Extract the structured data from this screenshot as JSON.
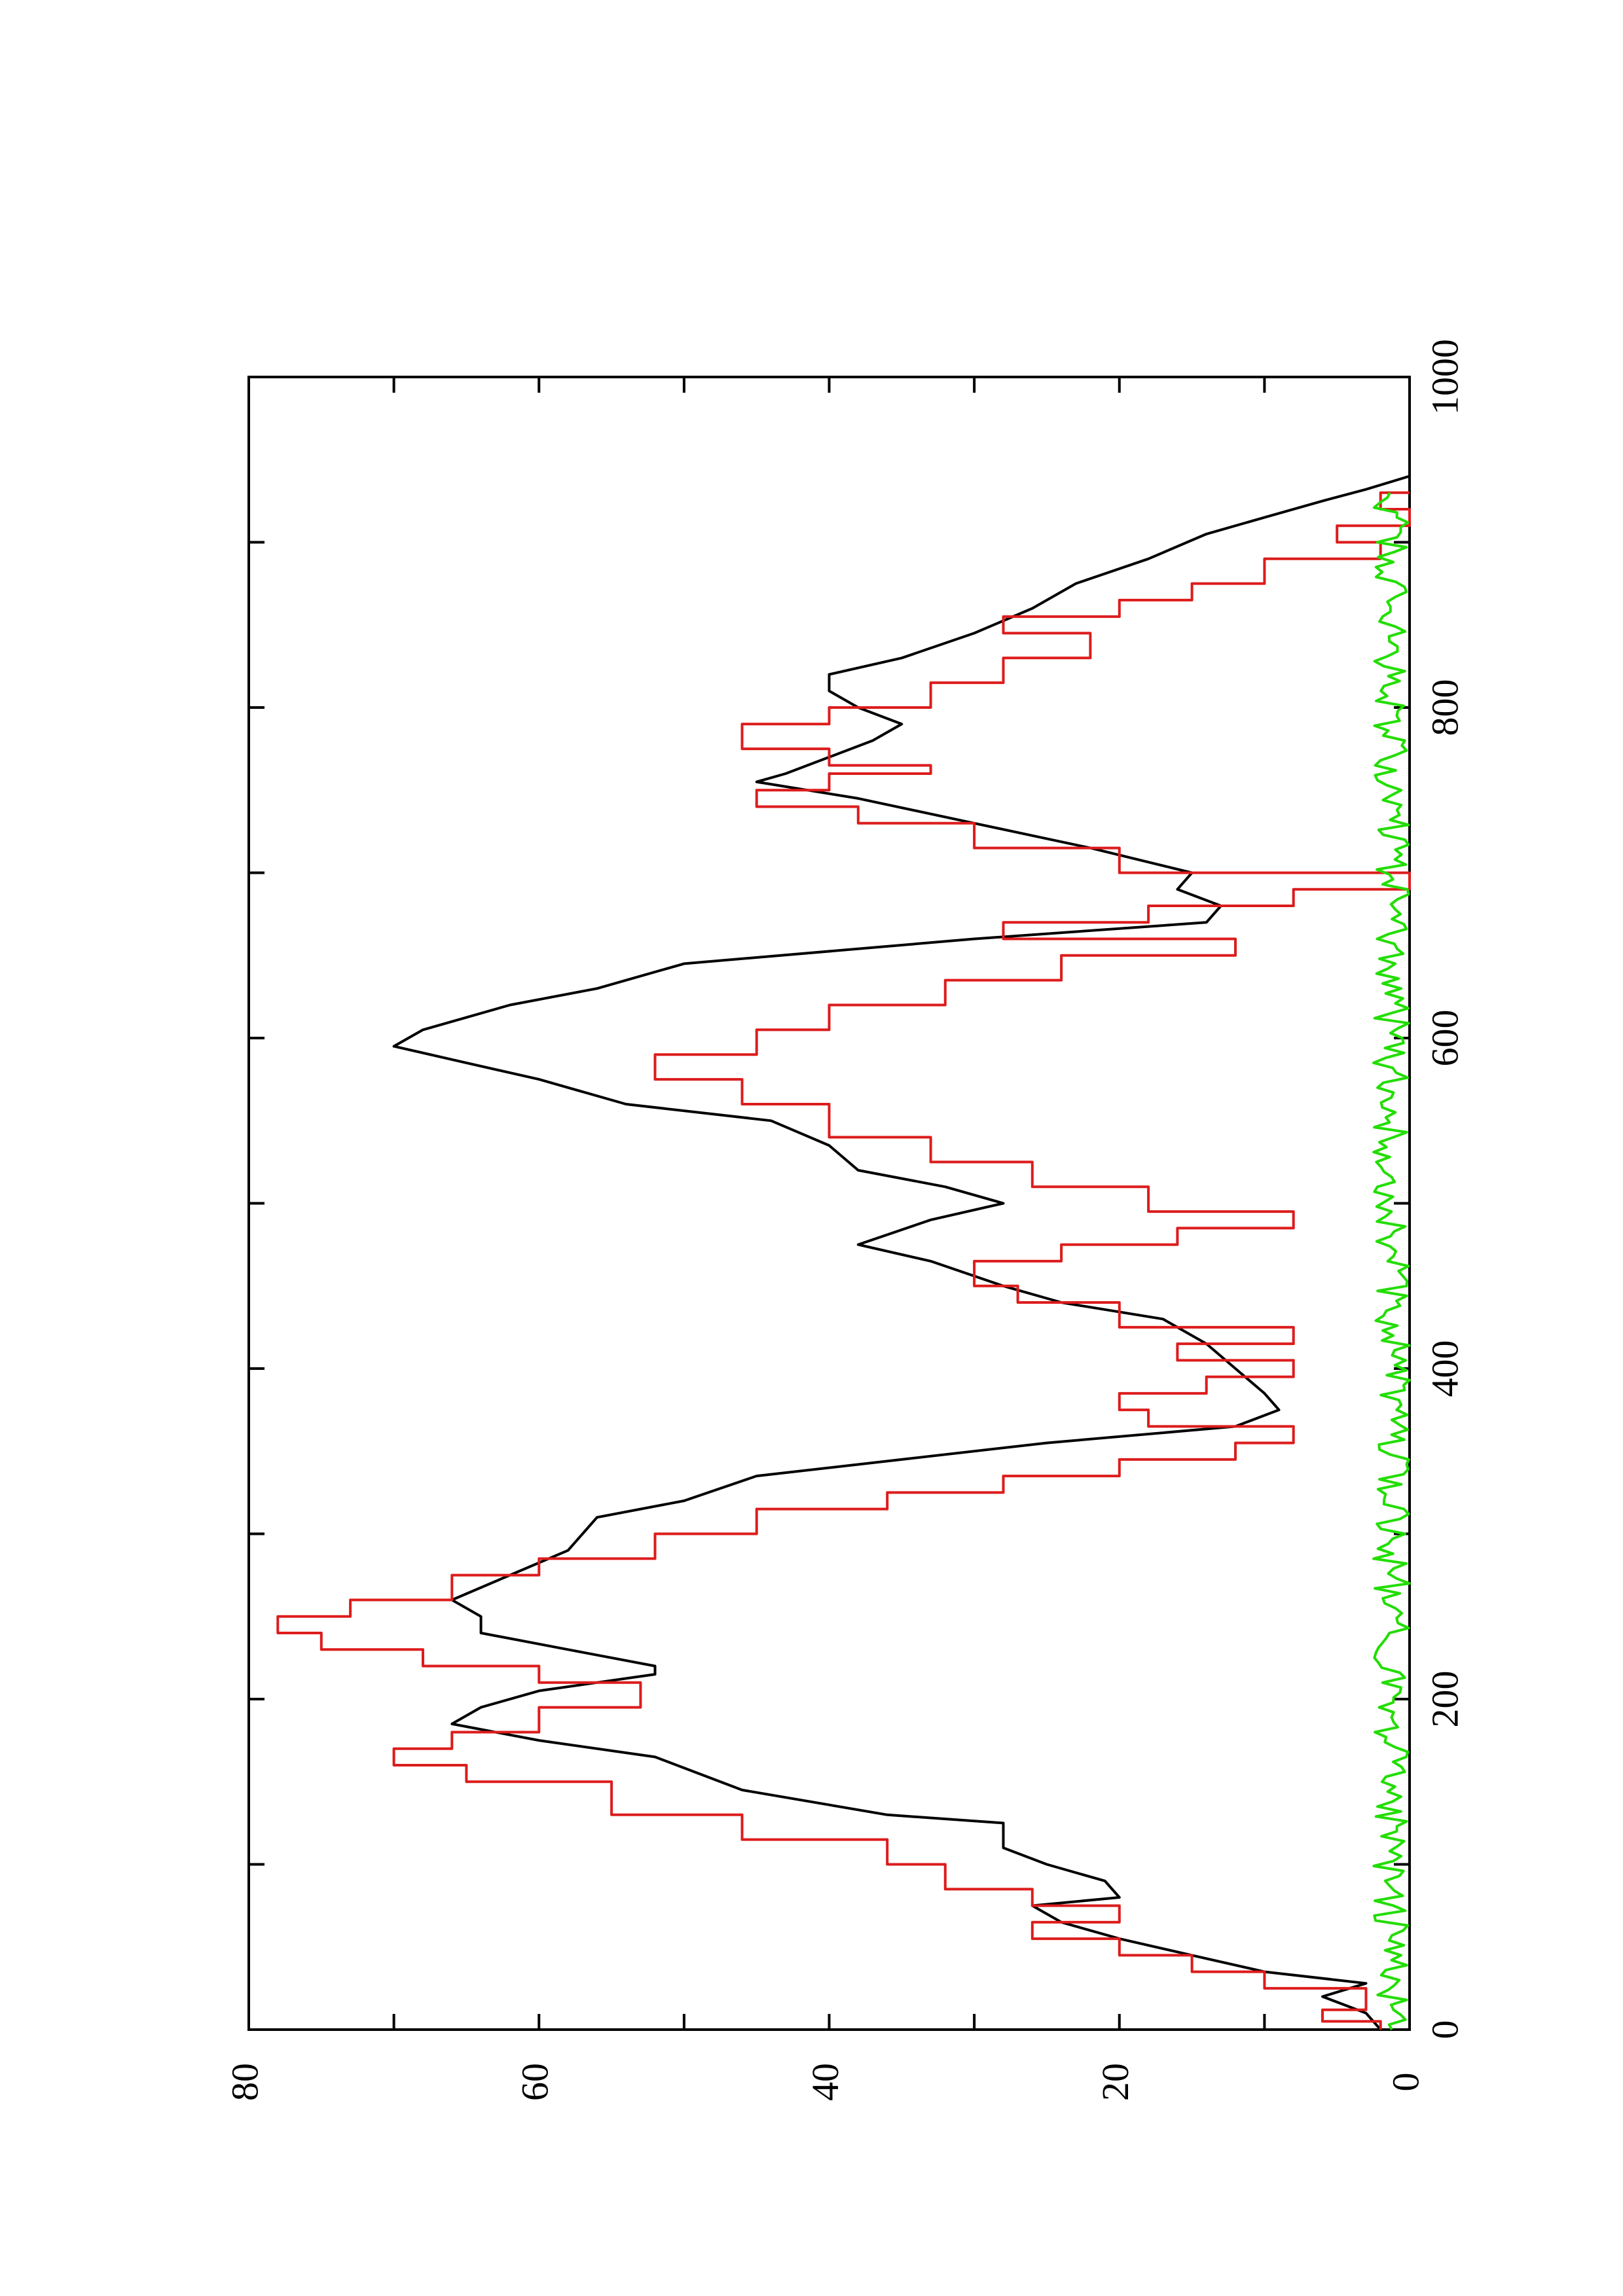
{
  "chart_data": {
    "type": "line",
    "orientation": "rotated-90-counterclockwise",
    "title": "",
    "xlabel": "",
    "ylabel": "",
    "xlim": [
      0,
      1000
    ],
    "ylim": [
      0,
      80
    ],
    "x_ticks": [
      "0",
      "200",
      "400",
      "600",
      "800",
      "1000"
    ],
    "x_minor_ticks": [
      100,
      300,
      500,
      700,
      900
    ],
    "y_ticks": [
      "0",
      "20",
      "40",
      "60",
      "80"
    ],
    "y_minor_ticks": [
      10,
      30,
      50,
      70
    ],
    "grid": false,
    "legend": "none",
    "series": [
      {
        "color": "#000000",
        "style": "smooth",
        "points": [
          [
            0,
            2
          ],
          [
            10,
            3
          ],
          [
            20,
            6
          ],
          [
            28,
            3
          ],
          [
            35,
            10
          ],
          [
            45,
            15
          ],
          [
            55,
            20
          ],
          [
            65,
            24
          ],
          [
            75,
            26
          ],
          [
            80,
            20
          ],
          [
            90,
            21
          ],
          [
            100,
            25
          ],
          [
            110,
            28
          ],
          [
            125,
            28
          ],
          [
            130,
            36
          ],
          [
            145,
            46
          ],
          [
            155,
            49
          ],
          [
            165,
            52
          ],
          [
            175,
            60
          ],
          [
            185,
            66
          ],
          [
            195,
            64
          ],
          [
            205,
            60
          ],
          [
            215,
            52
          ],
          [
            220,
            52
          ],
          [
            230,
            58
          ],
          [
            240,
            64
          ],
          [
            250,
            64
          ],
          [
            260,
            66
          ],
          [
            275,
            62
          ],
          [
            290,
            58
          ],
          [
            310,
            56
          ],
          [
            320,
            50
          ],
          [
            335,
            45
          ],
          [
            345,
            35
          ],
          [
            355,
            25
          ],
          [
            365,
            12
          ],
          [
            375,
            9
          ],
          [
            385,
            10
          ],
          [
            400,
            12
          ],
          [
            415,
            14
          ],
          [
            430,
            17
          ],
          [
            440,
            24
          ],
          [
            450,
            28
          ],
          [
            465,
            33
          ],
          [
            475,
            38
          ],
          [
            490,
            33
          ],
          [
            500,
            28
          ],
          [
            510,
            32
          ],
          [
            520,
            38
          ],
          [
            535,
            40
          ],
          [
            550,
            44
          ],
          [
            560,
            54
          ],
          [
            575,
            60
          ],
          [
            585,
            65
          ],
          [
            595,
            70
          ],
          [
            605,
            68
          ],
          [
            620,
            62
          ],
          [
            630,
            56
          ],
          [
            645,
            50
          ],
          [
            660,
            30
          ],
          [
            670,
            14
          ],
          [
            680,
            13
          ],
          [
            690,
            16
          ],
          [
            700,
            15
          ],
          [
            715,
            22
          ],
          [
            730,
            30
          ],
          [
            745,
            38
          ],
          [
            755,
            45
          ],
          [
            760,
            43
          ],
          [
            770,
            40
          ],
          [
            780,
            37
          ],
          [
            790,
            35
          ],
          [
            800,
            38
          ],
          [
            810,
            40
          ],
          [
            820,
            40
          ],
          [
            830,
            35
          ],
          [
            845,
            30
          ],
          [
            860,
            26
          ],
          [
            875,
            23
          ],
          [
            890,
            18
          ],
          [
            905,
            14
          ],
          [
            915,
            10
          ],
          [
            925,
            6
          ],
          [
            932,
            3
          ],
          [
            940,
            0
          ]
        ]
      },
      {
        "color": "#dd1c1c",
        "style": "step",
        "points": [
          [
            0,
            2
          ],
          [
            5,
            2
          ],
          [
            5,
            6
          ],
          [
            12,
            6
          ],
          [
            12,
            3
          ],
          [
            25,
            3
          ],
          [
            25,
            10
          ],
          [
            35,
            10
          ],
          [
            35,
            15
          ],
          [
            45,
            15
          ],
          [
            45,
            20
          ],
          [
            55,
            20
          ],
          [
            55,
            26
          ],
          [
            65,
            26
          ],
          [
            65,
            20
          ],
          [
            75,
            20
          ],
          [
            75,
            26
          ],
          [
            85,
            26
          ],
          [
            85,
            32
          ],
          [
            100,
            32
          ],
          [
            100,
            36
          ],
          [
            115,
            36
          ],
          [
            115,
            46
          ],
          [
            130,
            46
          ],
          [
            130,
            55
          ],
          [
            150,
            55
          ],
          [
            150,
            65
          ],
          [
            160,
            65
          ],
          [
            160,
            70
          ],
          [
            170,
            70
          ],
          [
            170,
            66
          ],
          [
            180,
            66
          ],
          [
            180,
            60
          ],
          [
            195,
            60
          ],
          [
            195,
            53
          ],
          [
            210,
            53
          ],
          [
            210,
            60
          ],
          [
            220,
            60
          ],
          [
            220,
            68
          ],
          [
            230,
            68
          ],
          [
            230,
            75
          ],
          [
            240,
            75
          ],
          [
            240,
            78
          ],
          [
            250,
            78
          ],
          [
            250,
            73
          ],
          [
            260,
            73
          ],
          [
            260,
            66
          ],
          [
            275,
            66
          ],
          [
            275,
            60
          ],
          [
            285,
            60
          ],
          [
            285,
            52
          ],
          [
            300,
            52
          ],
          [
            300,
            45
          ],
          [
            315,
            45
          ],
          [
            315,
            36
          ],
          [
            325,
            36
          ],
          [
            325,
            28
          ],
          [
            335,
            28
          ],
          [
            335,
            20
          ],
          [
            345,
            20
          ],
          [
            345,
            12
          ],
          [
            355,
            12
          ],
          [
            355,
            8
          ],
          [
            365,
            8
          ],
          [
            365,
            18
          ],
          [
            375,
            18
          ],
          [
            375,
            20
          ],
          [
            385,
            20
          ],
          [
            385,
            14
          ],
          [
            395,
            14
          ],
          [
            395,
            8
          ],
          [
            405,
            8
          ],
          [
            405,
            16
          ],
          [
            415,
            16
          ],
          [
            415,
            8
          ],
          [
            425,
            8
          ],
          [
            425,
            20
          ],
          [
            440,
            20
          ],
          [
            440,
            27
          ],
          [
            450,
            27
          ],
          [
            450,
            30
          ],
          [
            465,
            30
          ],
          [
            465,
            24
          ],
          [
            475,
            24
          ],
          [
            475,
            16
          ],
          [
            485,
            16
          ],
          [
            485,
            8
          ],
          [
            495,
            8
          ],
          [
            495,
            18
          ],
          [
            510,
            18
          ],
          [
            510,
            26
          ],
          [
            525,
            26
          ],
          [
            525,
            33
          ],
          [
            540,
            33
          ],
          [
            540,
            40
          ],
          [
            560,
            40
          ],
          [
            560,
            46
          ],
          [
            575,
            46
          ],
          [
            575,
            52
          ],
          [
            590,
            52
          ],
          [
            590,
            45
          ],
          [
            605,
            45
          ],
          [
            605,
            40
          ],
          [
            620,
            40
          ],
          [
            620,
            32
          ],
          [
            635,
            32
          ],
          [
            635,
            24
          ],
          [
            650,
            24
          ],
          [
            650,
            12
          ],
          [
            660,
            12
          ],
          [
            660,
            28
          ],
          [
            670,
            28
          ],
          [
            670,
            18
          ],
          [
            680,
            18
          ],
          [
            680,
            8
          ],
          [
            690,
            8
          ],
          [
            690,
            0
          ],
          [
            700,
            0
          ],
          [
            700,
            20
          ],
          [
            715,
            20
          ],
          [
            715,
            30
          ],
          [
            730,
            30
          ],
          [
            730,
            38
          ],
          [
            740,
            38
          ],
          [
            740,
            45
          ],
          [
            750,
            45
          ],
          [
            750,
            40
          ],
          [
            760,
            40
          ],
          [
            760,
            33
          ],
          [
            765,
            33
          ],
          [
            765,
            40
          ],
          [
            775,
            40
          ],
          [
            775,
            46
          ],
          [
            790,
            46
          ],
          [
            790,
            40
          ],
          [
            800,
            40
          ],
          [
            800,
            33
          ],
          [
            815,
            33
          ],
          [
            815,
            28
          ],
          [
            830,
            28
          ],
          [
            830,
            22
          ],
          [
            845,
            22
          ],
          [
            845,
            28
          ],
          [
            855,
            28
          ],
          [
            855,
            20
          ],
          [
            865,
            20
          ],
          [
            865,
            15
          ],
          [
            875,
            15
          ],
          [
            875,
            10
          ],
          [
            890,
            10
          ],
          [
            890,
            2
          ],
          [
            900,
            2
          ],
          [
            900,
            5
          ],
          [
            910,
            5
          ],
          [
            910,
            0
          ],
          [
            920,
            0
          ],
          [
            920,
            2
          ],
          [
            930,
            2
          ],
          [
            930,
            0
          ]
        ]
      },
      {
        "color": "#22dd00",
        "style": "noise",
        "amplitude": 2.5,
        "x_range": [
          0,
          930
        ],
        "points": [
          [
            0,
            1
          ],
          [
            20,
            2.5
          ],
          [
            40,
            0.5
          ],
          [
            60,
            1.5
          ],
          [
            80,
            1
          ],
          [
            100,
            2
          ],
          [
            120,
            0.5
          ],
          [
            140,
            1.5
          ],
          [
            160,
            1
          ],
          [
            180,
            2
          ],
          [
            200,
            0.5
          ],
          [
            220,
            1.5
          ],
          [
            240,
            1
          ],
          [
            260,
            2
          ],
          [
            280,
            0.5
          ],
          [
            300,
            1.5
          ],
          [
            320,
            1
          ],
          [
            340,
            1.5
          ],
          [
            360,
            0.5
          ],
          [
            380,
            2.5
          ],
          [
            400,
            1
          ],
          [
            420,
            2
          ],
          [
            440,
            0.5
          ],
          [
            460,
            2
          ],
          [
            480,
            1
          ],
          [
            500,
            1.5
          ],
          [
            520,
            0.5
          ],
          [
            540,
            1.5
          ],
          [
            560,
            1
          ],
          [
            580,
            2
          ],
          [
            600,
            0.5
          ],
          [
            620,
            1.5
          ],
          [
            640,
            1
          ],
          [
            660,
            2
          ],
          [
            680,
            0.5
          ],
          [
            700,
            2
          ],
          [
            720,
            1
          ],
          [
            740,
            1.5
          ],
          [
            760,
            0.5
          ],
          [
            780,
            1.5
          ],
          [
            800,
            1
          ],
          [
            820,
            2
          ],
          [
            840,
            0.5
          ],
          [
            860,
            1.5
          ],
          [
            880,
            1
          ],
          [
            900,
            2
          ],
          [
            920,
            0.5
          ],
          [
            930,
            2.5
          ]
        ]
      }
    ]
  }
}
